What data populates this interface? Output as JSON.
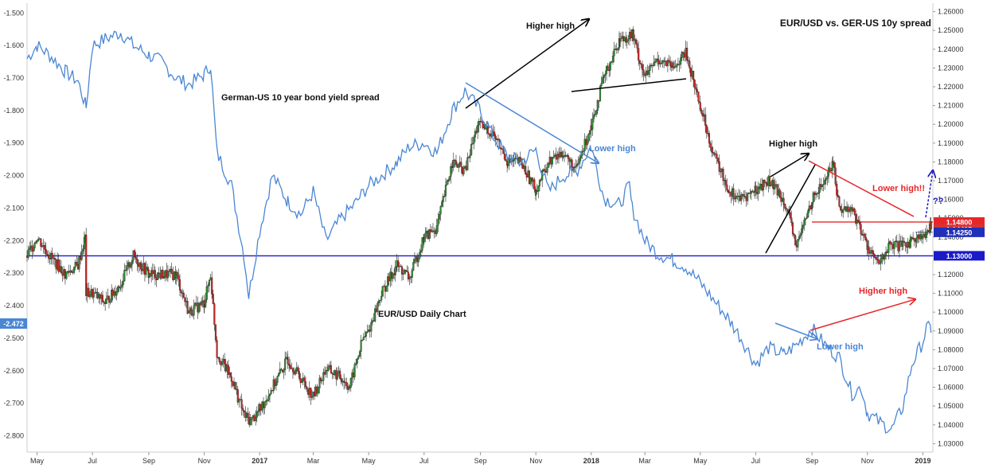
{
  "chart_data": {
    "type": "line",
    "title": "EUR/USD vs. GER-US 10y spread",
    "x_ticks": [
      "May",
      "Jul",
      "Sep",
      "Nov",
      "2017",
      "Mar",
      "May",
      "Jul",
      "Sep",
      "Nov",
      "2018",
      "Mar",
      "May",
      "Jul",
      "Sep",
      "Nov",
      "2019"
    ],
    "left_axis": {
      "ticks": [
        "-1.500",
        "-1.600",
        "-1.700",
        "-1.800",
        "-1.900",
        "-2.000",
        "-2.100",
        "-2.200",
        "-2.300",
        "-2.400",
        "-2.500",
        "-2.600",
        "-2.700",
        "-2.800"
      ],
      "ylim": [
        -2.85,
        -1.47
      ],
      "current_label": "-2.472"
    },
    "right_axis": {
      "ticks": [
        "1.26000",
        "1.25000",
        "1.24000",
        "1.23000",
        "1.22000",
        "1.21000",
        "1.20000",
        "1.19000",
        "1.18000",
        "1.17000",
        "1.16000",
        "1.15000",
        "1.14000",
        "1.13000",
        "1.12000",
        "1.11000",
        "1.10000",
        "1.09000",
        "1.08000",
        "1.07000",
        "1.06000",
        "1.05000",
        "1.04000",
        "1.03000"
      ],
      "ylim": [
        1.0255,
        1.2645
      ]
    },
    "series": [
      {
        "name": "German-US 10 year bond yield spread",
        "color": "#4a86d4",
        "axis": "left",
        "points": [
          [
            "2016-04-20",
            -1.64
          ],
          [
            "2016-05-01",
            -1.6
          ],
          [
            "2016-05-15",
            -1.63
          ],
          [
            "2016-06-01",
            -1.68
          ],
          [
            "2016-06-15",
            -1.71
          ],
          [
            "2016-06-24",
            -1.79
          ],
          [
            "2016-07-01",
            -1.6
          ],
          [
            "2016-07-15",
            -1.58
          ],
          [
            "2016-08-01",
            -1.56
          ],
          [
            "2016-08-15",
            -1.6
          ],
          [
            "2016-09-01",
            -1.63
          ],
          [
            "2016-09-15",
            -1.65
          ],
          [
            "2016-10-01",
            -1.7
          ],
          [
            "2016-10-15",
            -1.72
          ],
          [
            "2016-11-01",
            -1.69
          ],
          [
            "2016-11-08",
            -1.66
          ],
          [
            "2016-11-15",
            -1.93
          ],
          [
            "2016-12-01",
            -2.03
          ],
          [
            "2016-12-15",
            -2.25
          ],
          [
            "2016-12-20",
            -2.37
          ],
          [
            "2017-01-01",
            -2.17
          ],
          [
            "2017-01-15",
            -2.0
          ],
          [
            "2017-02-01",
            -2.08
          ],
          [
            "2017-02-15",
            -2.12
          ],
          [
            "2017-03-01",
            -2.05
          ],
          [
            "2017-03-15",
            -2.2
          ],
          [
            "2017-04-01",
            -2.13
          ],
          [
            "2017-04-15",
            -2.09
          ],
          [
            "2017-05-01",
            -2.03
          ],
          [
            "2017-05-15",
            -2.0
          ],
          [
            "2017-06-01",
            -1.96
          ],
          [
            "2017-06-15",
            -1.91
          ],
          [
            "2017-07-01",
            -1.9
          ],
          [
            "2017-07-15",
            -1.93
          ],
          [
            "2017-08-01",
            -1.8
          ],
          [
            "2017-08-15",
            -1.74
          ],
          [
            "2017-09-01",
            -1.8
          ],
          [
            "2017-09-15",
            -1.88
          ],
          [
            "2017-10-01",
            -1.94
          ],
          [
            "2017-10-15",
            -1.96
          ],
          [
            "2017-11-01",
            -1.92
          ],
          [
            "2017-11-15",
            -2.05
          ],
          [
            "2017-12-01",
            -2.0
          ],
          [
            "2017-12-15",
            -1.99
          ],
          [
            "2018-01-01",
            -1.91
          ],
          [
            "2018-01-15",
            -2.07
          ],
          [
            "2018-02-01",
            -2.09
          ],
          [
            "2018-02-12",
            -2.03
          ],
          [
            "2018-02-15",
            -2.1
          ],
          [
            "2018-03-01",
            -2.2
          ],
          [
            "2018-03-15",
            -2.24
          ],
          [
            "2018-04-01",
            -2.26
          ],
          [
            "2018-04-15",
            -2.28
          ],
          [
            "2018-05-01",
            -2.33
          ],
          [
            "2018-05-15",
            -2.38
          ],
          [
            "2018-06-01",
            -2.44
          ],
          [
            "2018-06-15",
            -2.5
          ],
          [
            "2018-07-01",
            -2.58
          ],
          [
            "2018-07-15",
            -2.53
          ],
          [
            "2018-08-01",
            -2.55
          ],
          [
            "2018-08-15",
            -2.52
          ],
          [
            "2018-09-01",
            -2.47
          ],
          [
            "2018-09-15",
            -2.52
          ],
          [
            "2018-10-01",
            -2.56
          ],
          [
            "2018-10-15",
            -2.67
          ],
          [
            "2018-10-25",
            -2.65
          ],
          [
            "2018-11-01",
            -2.73
          ],
          [
            "2018-11-15",
            -2.76
          ],
          [
            "2018-11-28",
            -2.78
          ],
          [
            "2018-12-10",
            -2.71
          ],
          [
            "2018-12-20",
            -2.58
          ],
          [
            "2019-01-01",
            -2.51
          ],
          [
            "2019-01-05",
            -2.47
          ],
          [
            "2019-01-10",
            -2.47
          ]
        ]
      },
      {
        "name": "EUR/USD Daily Chart",
        "axis": "right",
        "up_color": "#2e8b2e",
        "down_color": "#cc2222",
        "points": [
          [
            "2016-04-20",
            1.13
          ],
          [
            "2016-05-01",
            1.14
          ],
          [
            "2016-05-15",
            1.13
          ],
          [
            "2016-06-01",
            1.12
          ],
          [
            "2016-06-15",
            1.125
          ],
          [
            "2016-06-23",
            1.14
          ],
          [
            "2016-06-24",
            1.11
          ],
          [
            "2016-07-01",
            1.11
          ],
          [
            "2016-07-15",
            1.105
          ],
          [
            "2016-08-01",
            1.115
          ],
          [
            "2016-08-15",
            1.13
          ],
          [
            "2016-09-01",
            1.12
          ],
          [
            "2016-09-15",
            1.12
          ],
          [
            "2016-10-01",
            1.12
          ],
          [
            "2016-10-15",
            1.1
          ],
          [
            "2016-11-01",
            1.105
          ],
          [
            "2016-11-08",
            1.12
          ],
          [
            "2016-11-15",
            1.078
          ],
          [
            "2016-12-01",
            1.065
          ],
          [
            "2016-12-15",
            1.045
          ],
          [
            "2016-12-22",
            1.042
          ],
          [
            "2017-01-01",
            1.048
          ],
          [
            "2017-01-15",
            1.06
          ],
          [
            "2017-02-01",
            1.075
          ],
          [
            "2017-02-15",
            1.065
          ],
          [
            "2017-03-01",
            1.055
          ],
          [
            "2017-03-15",
            1.07
          ],
          [
            "2017-04-01",
            1.065
          ],
          [
            "2017-04-10",
            1.06
          ],
          [
            "2017-04-24",
            1.085
          ],
          [
            "2017-05-01",
            1.09
          ],
          [
            "2017-05-15",
            1.11
          ],
          [
            "2017-06-01",
            1.125
          ],
          [
            "2017-06-15",
            1.118
          ],
          [
            "2017-07-01",
            1.14
          ],
          [
            "2017-07-15",
            1.145
          ],
          [
            "2017-08-01",
            1.18
          ],
          [
            "2017-08-15",
            1.175
          ],
          [
            "2017-08-29",
            1.2
          ],
          [
            "2017-09-15",
            1.195
          ],
          [
            "2017-10-01",
            1.18
          ],
          [
            "2017-10-15",
            1.18
          ],
          [
            "2017-11-01",
            1.165
          ],
          [
            "2017-11-15",
            1.18
          ],
          [
            "2017-12-01",
            1.185
          ],
          [
            "2017-12-15",
            1.175
          ],
          [
            "2018-01-01",
            1.2
          ],
          [
            "2018-01-15",
            1.225
          ],
          [
            "2018-02-01",
            1.245
          ],
          [
            "2018-02-15",
            1.248
          ],
          [
            "2018-03-01",
            1.225
          ],
          [
            "2018-03-15",
            1.235
          ],
          [
            "2018-04-01",
            1.23
          ],
          [
            "2018-04-15",
            1.238
          ],
          [
            "2018-05-01",
            1.21
          ],
          [
            "2018-05-15",
            1.185
          ],
          [
            "2018-06-01",
            1.165
          ],
          [
            "2018-06-15",
            1.16
          ],
          [
            "2018-07-01",
            1.165
          ],
          [
            "2018-07-15",
            1.17
          ],
          [
            "2018-08-01",
            1.16
          ],
          [
            "2018-08-15",
            1.135
          ],
          [
            "2018-09-01",
            1.16
          ],
          [
            "2018-09-15",
            1.17
          ],
          [
            "2018-09-24",
            1.18
          ],
          [
            "2018-10-01",
            1.155
          ],
          [
            "2018-10-15",
            1.155
          ],
          [
            "2018-11-01",
            1.135
          ],
          [
            "2018-11-13",
            1.125
          ],
          [
            "2018-11-25",
            1.135
          ],
          [
            "2018-12-10",
            1.135
          ],
          [
            "2018-12-25",
            1.14
          ],
          [
            "2019-01-05",
            1.14
          ],
          [
            "2019-01-10",
            1.147
          ]
        ]
      }
    ],
    "horizontal_lines": [
      {
        "label": "1.14800",
        "axis": "right",
        "value": 1.148,
        "color": "#e8262a"
      },
      {
        "label": "1.14405",
        "axis": "right",
        "value": 1.14405,
        "color": "#d23636"
      },
      {
        "label": "1.14250",
        "axis": "right",
        "value": 1.1425,
        "color": "#2030b8"
      },
      {
        "label": "1.13000",
        "axis": "right",
        "value": 1.13,
        "color": "#1a1ac8"
      }
    ],
    "annotations": {
      "higher_high_1": "Higher high",
      "spread_label": "German-US 10 year bond yield spread",
      "lower_high_1": "Lower high",
      "higher_high_2": "Higher high",
      "lower_high_2": "Lower high!!",
      "question": "??",
      "higher_high_3": "Higher high",
      "lower_high_3": "Lower high",
      "eurusd_label": "EUR/USD Daily Chart"
    },
    "colors": {
      "spread_line": "#4a86d4",
      "axis_text": "#333333",
      "black_annot": "#000000",
      "red_annot": "#e8262a",
      "blue_annot": "#4a86d4",
      "dark_blue_arrow": "#1c1cb8"
    },
    "grid": false,
    "legend": "none"
  }
}
